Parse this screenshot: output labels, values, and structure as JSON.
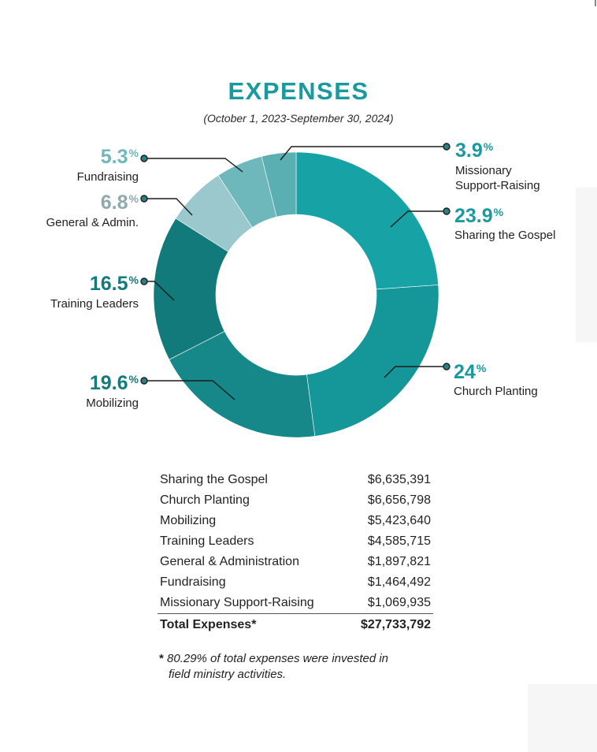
{
  "heading": {
    "title": "EXPENSES",
    "subtitle": "(October 1, 2023-September 30, 2024)"
  },
  "chart_data": {
    "type": "pie",
    "title": "EXPENSES",
    "subtitle": "(October 1, 2023-September 30, 2024)",
    "slices": [
      {
        "label": "Sharing the Gospel",
        "pct_text": "23.9",
        "value": 23.9,
        "color": "#17a3a6"
      },
      {
        "label": "Church Planting",
        "pct_text": "24",
        "value": 24.0,
        "color": "#15979a"
      },
      {
        "label": "Mobilizing",
        "pct_text": "19.6",
        "value": 19.6,
        "color": "#16888a"
      },
      {
        "label": "Training Leaders",
        "pct_text": "16.5",
        "value": 16.5,
        "color": "#137a7b"
      },
      {
        "label": "General & Admin.",
        "pct_text": "6.8",
        "value": 6.8,
        "color": "#9ac8cc"
      },
      {
        "label": "Fundraising",
        "pct_text": "5.3",
        "value": 5.3,
        "color": "#6eb8bc"
      },
      {
        "label": "Missionary Support-Raising",
        "pct_text": "3.9",
        "value": 3.9,
        "color": "#5aafb2"
      }
    ],
    "pct_symbol": "%",
    "label_colors": {
      "Sharing the Gospel": "#1a9a9e",
      "Church Planting": "#1a9a9e",
      "Mobilizing": "#147a7c",
      "Training Leaders": "#147a7c",
      "General & Admin.": "#8fa9ad",
      "Fundraising": "#6eb8bc",
      "Missionary Support-Raising": "#1a9a9e"
    }
  },
  "labels": {
    "missionary": {
      "pct": "3.9",
      "line1": "Missionary",
      "line2": "Support-Raising"
    },
    "sharing": {
      "pct": "23.9",
      "name": "Sharing the Gospel"
    },
    "church": {
      "pct": "24",
      "name": "Church Planting"
    },
    "mobilizing": {
      "pct": "19.6",
      "name": "Mobilizing"
    },
    "training": {
      "pct": "16.5",
      "name": "Training Leaders"
    },
    "general": {
      "pct": "6.8",
      "name": "General & Admin."
    },
    "fundraising": {
      "pct": "5.3",
      "name": "Fundraising"
    }
  },
  "table": {
    "rows": [
      {
        "label": "Sharing the Gospel",
        "amount": "$6,635,391"
      },
      {
        "label": "Church Planting",
        "amount": "$6,656,798"
      },
      {
        "label": "Mobilizing",
        "amount": "$5,423,640"
      },
      {
        "label": "Training Leaders",
        "amount": "$4,585,715"
      },
      {
        "label": "General & Administration",
        "amount": "$1,897,821"
      },
      {
        "label": "Fundraising",
        "amount": "$1,464,492"
      },
      {
        "label": "Missionary Support-Raising",
        "amount": "$1,069,935"
      }
    ],
    "total_label": "Total Expenses*",
    "total_amount": "$27,733,792"
  },
  "footnote": {
    "star": "*",
    "line1": "80.29% of total expenses were invested in",
    "line2": "field ministry activities."
  }
}
